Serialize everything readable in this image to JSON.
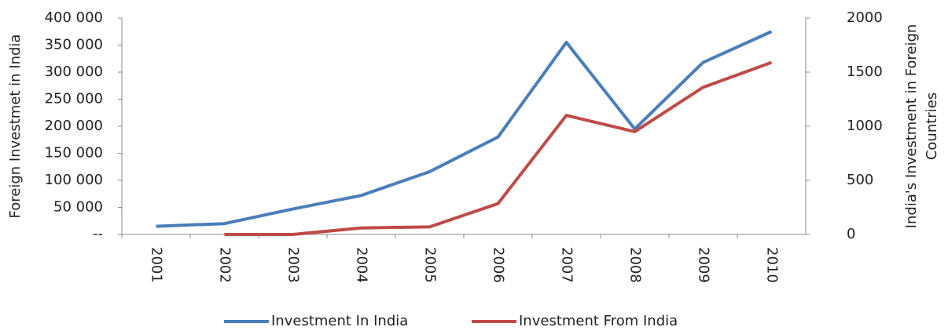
{
  "chart_data": {
    "type": "line",
    "categories": [
      "2001",
      "2002",
      "2003",
      "2004",
      "2005",
      "2006",
      "2007",
      "2008",
      "2009",
      "2010"
    ],
    "series": [
      {
        "name": "Investment In India",
        "color": "#4a7ebb",
        "axis": "y",
        "values": [
          15000,
          20000,
          47000,
          72000,
          116000,
          180000,
          355000,
          195000,
          318000,
          375000
        ]
      },
      {
        "name": "Investment From India",
        "color": "#be4b48",
        "axis": "y2",
        "values": [
          null,
          0,
          0,
          60,
          70,
          285,
          1100,
          950,
          1360,
          1590
        ]
      }
    ],
    "y_label": "Foreign Investmet in India",
    "y2_label": [
      "India's Investment in Foreign",
      "Countries"
    ],
    "ylim": [
      0,
      400000
    ],
    "yticks": [
      {
        "value": 0,
        "label": "--"
      },
      {
        "value": 50000,
        "label": "50 000"
      },
      {
        "value": 100000,
        "label": "100 000"
      },
      {
        "value": 150000,
        "label": "150 000"
      },
      {
        "value": 200000,
        "label": "200 000"
      },
      {
        "value": 250000,
        "label": "250 000"
      },
      {
        "value": 300000,
        "label": "300 000"
      },
      {
        "value": 350000,
        "label": "350 000"
      },
      {
        "value": 400000,
        "label": "400 000"
      }
    ],
    "y2lim": [
      0,
      2000
    ],
    "y2ticks": [
      0,
      500,
      1000,
      1500,
      2000
    ],
    "legend": "bottom"
  }
}
